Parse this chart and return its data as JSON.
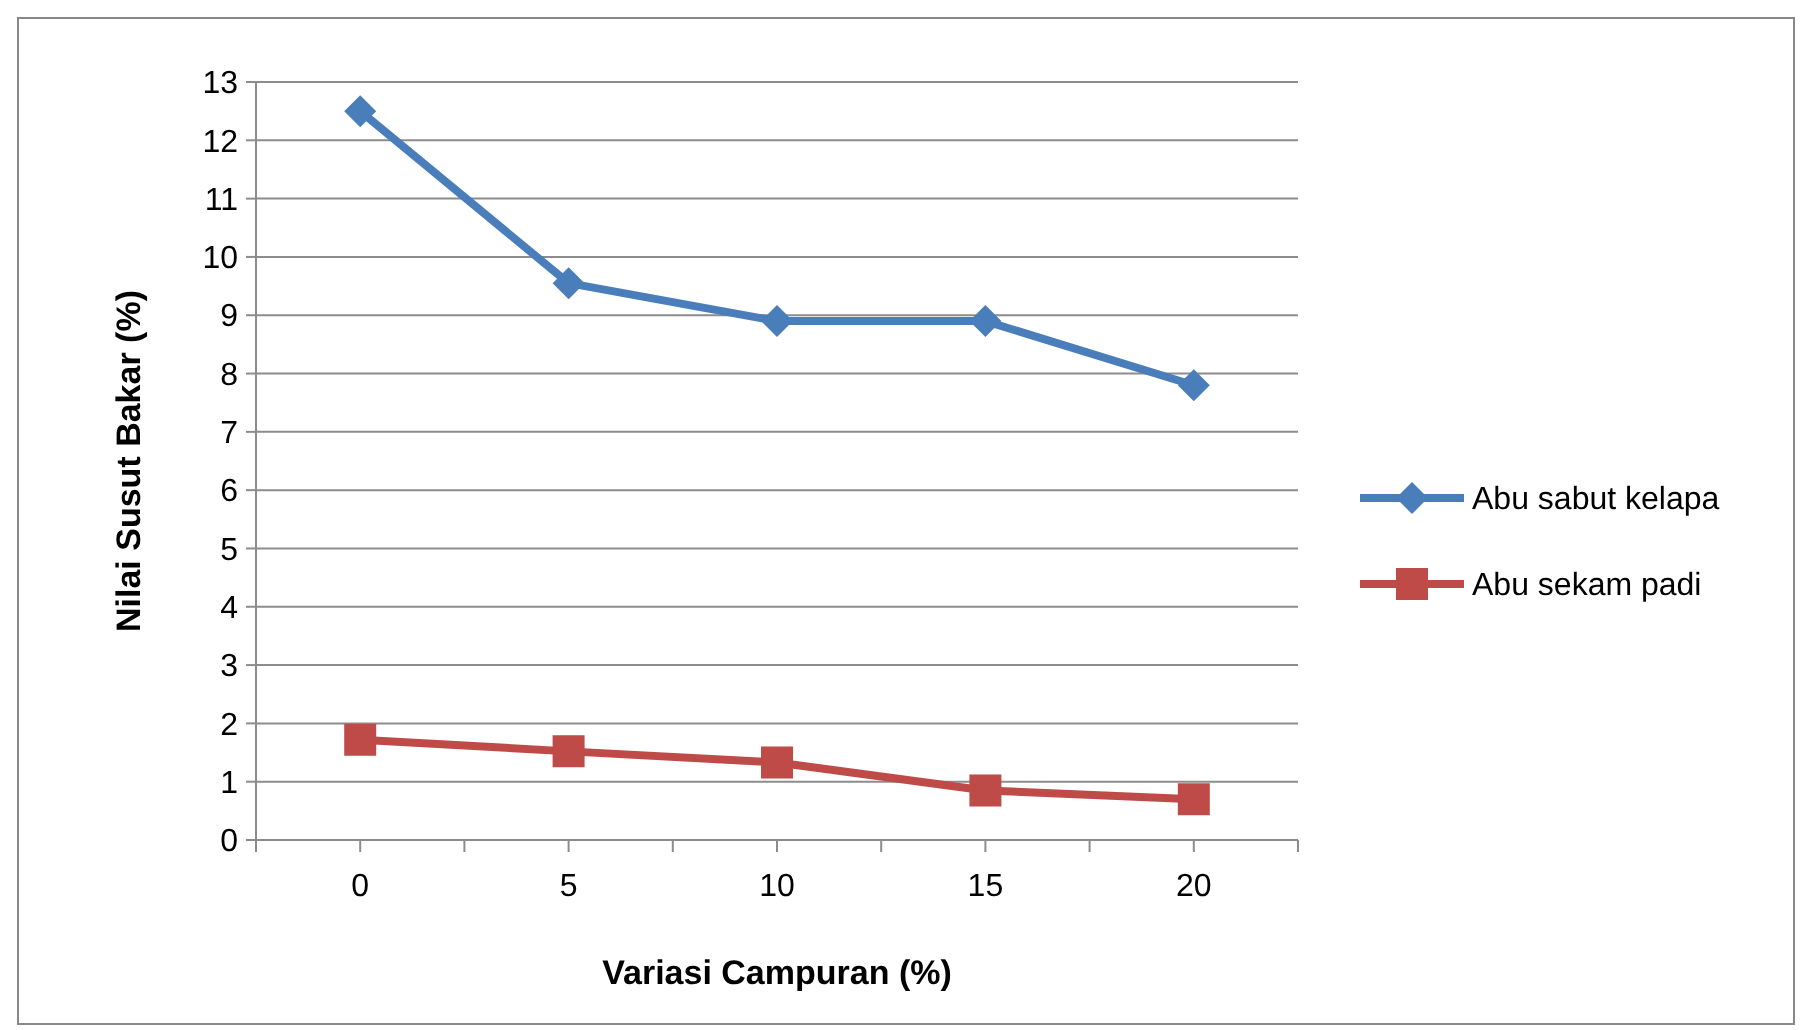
{
  "chart_data": {
    "type": "line",
    "xlabel": "Variasi Campuran (%)",
    "ylabel": "Nilai Susut Bakar (%)",
    "categories": [
      "0",
      "5",
      "10",
      "15",
      "20"
    ],
    "series": [
      {
        "name": "Abu sabut kelapa",
        "color": "#4a7ebb",
        "marker": "diamond",
        "values": [
          12.5,
          9.55,
          8.9,
          8.9,
          7.8
        ]
      },
      {
        "name": "Abu sekam padi",
        "color": "#be4b48",
        "marker": "square",
        "values": [
          1.72,
          1.52,
          1.33,
          0.85,
          0.7
        ]
      }
    ],
    "ylim": [
      0,
      13
    ],
    "yticks": [
      0,
      1,
      2,
      3,
      4,
      5,
      6,
      7,
      8,
      9,
      10,
      11,
      12,
      13
    ],
    "grid": "y",
    "legend": "right"
  }
}
